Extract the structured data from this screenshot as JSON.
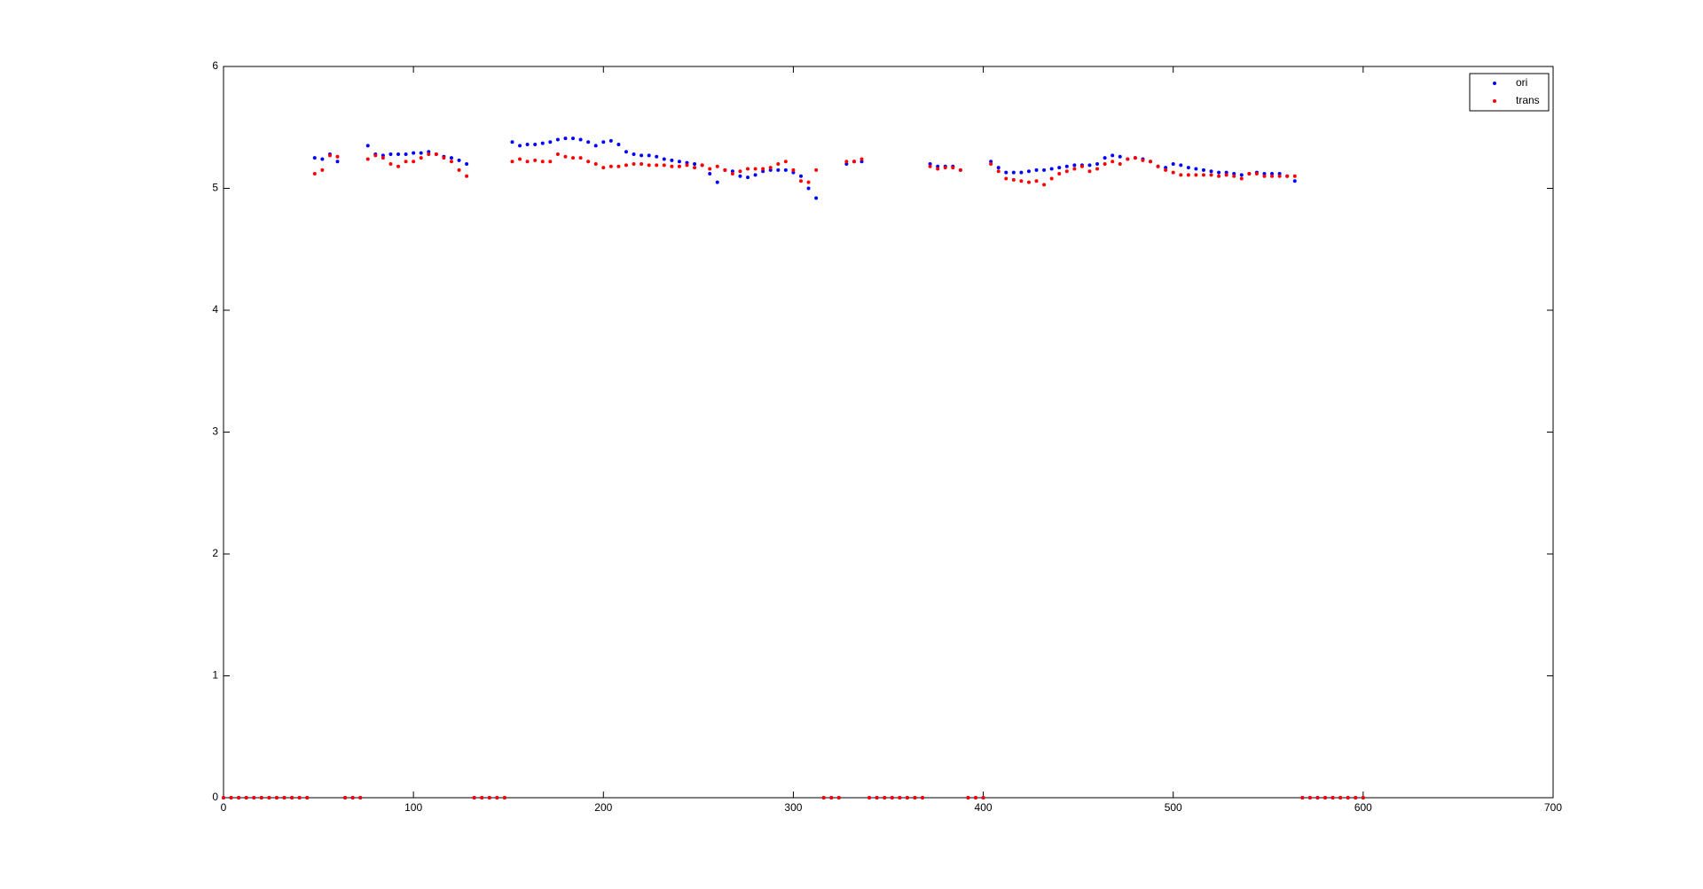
{
  "chart_data": {
    "type": "scatter",
    "x": [
      0,
      4,
      8,
      12,
      16,
      20,
      24,
      28,
      32,
      36,
      40,
      44,
      48,
      52,
      56,
      60,
      64,
      68,
      72,
      76,
      80,
      84,
      88,
      92,
      96,
      100,
      104,
      108,
      112,
      116,
      120,
      124,
      128,
      132,
      136,
      140,
      144,
      148,
      152,
      156,
      160,
      164,
      168,
      172,
      176,
      180,
      184,
      188,
      192,
      196,
      200,
      204,
      208,
      212,
      216,
      220,
      224,
      228,
      232,
      236,
      240,
      244,
      248,
      252,
      256,
      260,
      264,
      268,
      272,
      276,
      280,
      284,
      288,
      292,
      296,
      300,
      304,
      308,
      312,
      316,
      320,
      324,
      328,
      332,
      336,
      340,
      344,
      348,
      352,
      356,
      360,
      364,
      368,
      372,
      376,
      380,
      384,
      388,
      392,
      396,
      400,
      404,
      408,
      412,
      416,
      420,
      424,
      428,
      432,
      436,
      440,
      444,
      448,
      452,
      456,
      460,
      464,
      468,
      472,
      476,
      480,
      484,
      488,
      492,
      496,
      500,
      504,
      508,
      512,
      516,
      520,
      524,
      528,
      532,
      536,
      540,
      544,
      548,
      552,
      556,
      560,
      564,
      568,
      572,
      576,
      580,
      584,
      588,
      592,
      596,
      600
    ],
    "series": [
      {
        "name": "ori",
        "color": "#0000ff",
        "values": [
          0,
          0,
          0,
          0,
          0,
          0,
          0,
          0,
          0,
          0,
          0,
          0,
          5.25,
          5.24,
          5.28,
          5.22,
          0,
          0,
          0,
          5.35,
          5.28,
          5.27,
          5.28,
          5.28,
          5.28,
          5.29,
          5.29,
          5.3,
          5.28,
          5.26,
          5.25,
          5.23,
          5.2,
          0,
          0,
          0,
          0,
          0,
          5.38,
          5.35,
          5.36,
          5.36,
          5.37,
          5.38,
          5.4,
          5.41,
          5.41,
          5.4,
          5.38,
          5.35,
          5.38,
          5.39,
          5.36,
          5.3,
          5.28,
          5.27,
          5.27,
          5.26,
          5.24,
          5.23,
          5.22,
          5.21,
          5.2,
          5.19,
          5.12,
          5.05,
          5.15,
          5.14,
          5.1,
          5.09,
          5.11,
          5.14,
          5.15,
          5.15,
          5.15,
          5.13,
          5.1,
          5.0,
          4.92,
          0,
          0,
          0,
          5.2,
          5.22,
          5.22,
          0,
          0,
          0,
          0,
          0,
          0,
          0,
          0,
          5.2,
          5.18,
          5.18,
          5.18,
          5.15,
          0,
          0,
          0,
          5.22,
          5.17,
          5.13,
          5.13,
          5.13,
          5.14,
          5.15,
          5.15,
          5.16,
          5.17,
          5.18,
          5.19,
          5.19,
          5.19,
          5.2,
          5.25,
          5.27,
          5.26,
          5.24,
          5.25,
          5.24,
          5.22,
          5.18,
          5.17,
          5.2,
          5.19,
          5.17,
          5.16,
          5.15,
          5.14,
          5.13,
          5.13,
          5.12,
          5.11,
          5.12,
          5.13,
          5.12,
          5.12,
          5.12,
          5.1,
          5.06,
          0,
          0,
          0,
          0,
          0,
          0,
          0,
          0,
          0
        ]
      },
      {
        "name": "trans",
        "color": "#ff0000",
        "values": [
          0,
          0,
          0,
          0,
          0,
          0,
          0,
          0,
          0,
          0,
          0,
          0,
          5.12,
          5.15,
          5.27,
          5.26,
          0,
          0,
          0,
          5.24,
          5.27,
          5.25,
          5.2,
          5.18,
          5.22,
          5.22,
          5.25,
          5.28,
          5.28,
          5.25,
          5.22,
          5.15,
          5.1,
          0,
          0,
          0,
          0,
          0,
          5.22,
          5.24,
          5.22,
          5.23,
          5.22,
          5.22,
          5.28,
          5.26,
          5.25,
          5.25,
          5.22,
          5.2,
          5.17,
          5.18,
          5.18,
          5.19,
          5.2,
          5.2,
          5.19,
          5.19,
          5.19,
          5.18,
          5.18,
          5.19,
          5.17,
          5.19,
          5.16,
          5.18,
          5.15,
          5.12,
          5.14,
          5.16,
          5.16,
          5.16,
          5.17,
          5.2,
          5.22,
          5.15,
          5.06,
          5.05,
          5.15,
          0,
          0,
          0,
          5.22,
          5.22,
          5.24,
          0,
          0,
          0,
          0,
          0,
          0,
          0,
          0,
          5.18,
          5.16,
          5.17,
          5.17,
          5.15,
          0,
          0,
          0,
          5.2,
          5.14,
          5.08,
          5.07,
          5.06,
          5.05,
          5.06,
          5.03,
          5.08,
          5.12,
          5.14,
          5.16,
          5.18,
          5.14,
          5.16,
          5.2,
          5.22,
          5.2,
          5.24,
          5.25,
          5.23,
          5.22,
          5.18,
          5.15,
          5.13,
          5.11,
          5.11,
          5.11,
          5.11,
          5.11,
          5.1,
          5.11,
          5.1,
          5.08,
          5.12,
          5.12,
          5.1,
          5.1,
          5.1,
          5.1,
          5.1,
          0,
          0,
          0,
          0,
          0,
          0,
          0,
          0,
          0
        ]
      }
    ],
    "xlim": [
      0,
      700
    ],
    "xticks": [
      0,
      100,
      200,
      300,
      400,
      500,
      600,
      700
    ],
    "ylim": [
      0,
      6
    ],
    "yticks": [
      0,
      1,
      2,
      3,
      4,
      5,
      6
    ],
    "legend": "upper right"
  }
}
